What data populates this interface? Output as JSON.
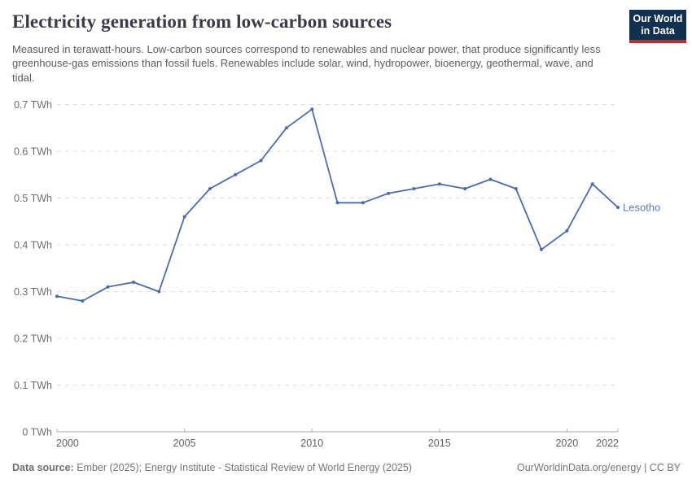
{
  "header": {
    "title": "Electricity generation from low-carbon sources",
    "subtitle": "Measured in terawatt-hours. Low-carbon sources correspond to renewables and nuclear power, that produce significantly less greenhouse-gas emissions than fossil fuels. Renewables include solar, wind, hydropower, bioenergy, geothermal, wave, and tidal.",
    "logo": {
      "line1": "Our World",
      "line2": "in Data",
      "bg_color": "#12304f",
      "accent_color": "#c22a35"
    }
  },
  "chart_data": {
    "type": "line",
    "title": "Electricity generation from low-carbon sources",
    "unit": "TWh",
    "x": [
      2000,
      2001,
      2002,
      2003,
      2004,
      2005,
      2006,
      2007,
      2008,
      2009,
      2010,
      2011,
      2012,
      2013,
      2014,
      2015,
      2016,
      2017,
      2018,
      2019,
      2020,
      2021,
      2022
    ],
    "series": [
      {
        "name": "Lesotho",
        "color": "#4c6ba5",
        "values": [
          0.29,
          0.28,
          0.31,
          0.32,
          0.3,
          0.46,
          0.52,
          0.55,
          0.58,
          0.65,
          0.69,
          0.49,
          0.49,
          0.51,
          0.52,
          0.53,
          0.52,
          0.54,
          0.52,
          0.39,
          0.43,
          0.53,
          0.48
        ]
      }
    ],
    "xlabel": "",
    "ylabel": "",
    "ylim": [
      0,
      0.7
    ],
    "yticks": [
      0,
      0.1,
      0.2,
      0.3,
      0.4,
      0.5,
      0.6,
      0.7
    ],
    "ytick_labels": [
      "0 TWh",
      "0.1 TWh",
      "0.2 TWh",
      "0.3 TWh",
      "0.4 TWh",
      "0.5 TWh",
      "0.6 TWh",
      "0.7 TWh"
    ],
    "xticks": [
      2000,
      2005,
      2010,
      2015,
      2020,
      2022
    ],
    "grid": "horizontal-dashed",
    "legend_position": "end-of-line-label",
    "colors": {
      "gridline": "#dedede",
      "axis": "#aeaeae",
      "ytick_text": "#6c6c6c",
      "xtick_text": "#5f5f5f"
    }
  },
  "footer": {
    "source_label": "Data source:",
    "source_text": " Ember (2025); Energy Institute - Statistical Review of World Energy (2025)",
    "rights": "OurWorldinData.org/energy | CC BY"
  }
}
